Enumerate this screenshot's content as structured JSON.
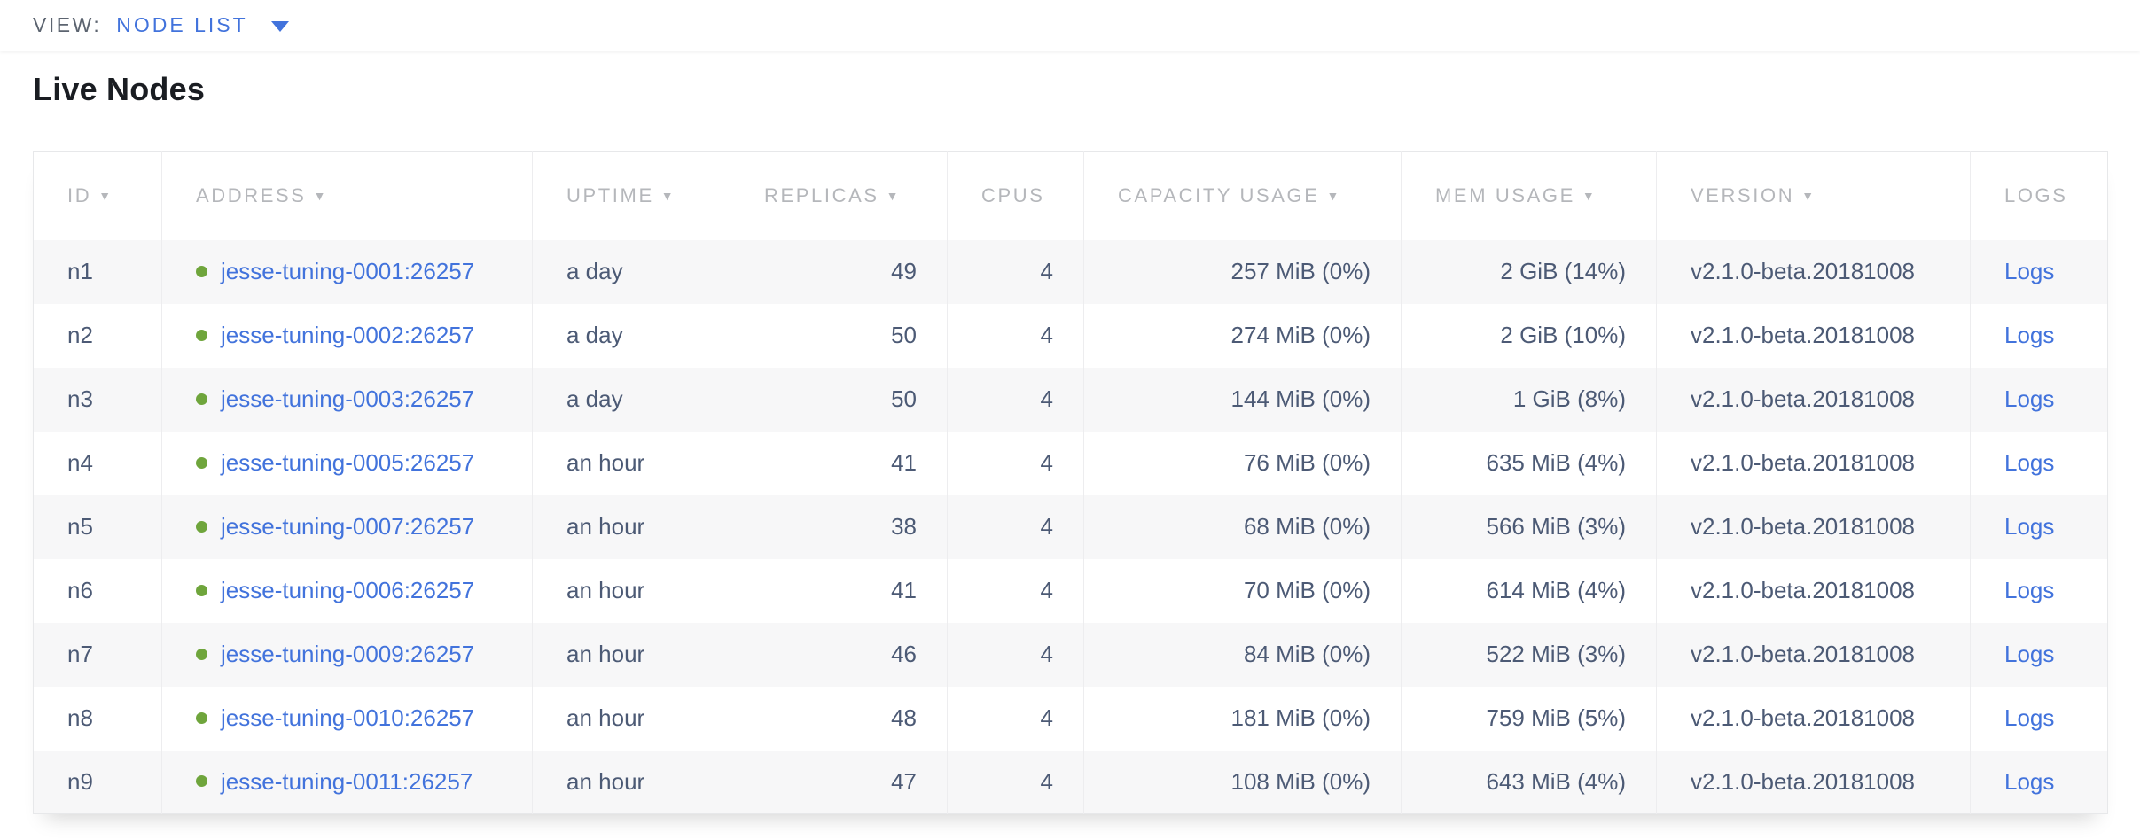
{
  "topbar": {
    "view_label": "VIEW:",
    "view_value": "NODE LIST"
  },
  "page_title": "Live Nodes",
  "icons": {
    "sort_arrow": "▼"
  },
  "table": {
    "columns": [
      {
        "key": "id",
        "label": "ID",
        "sortable": true,
        "align": "left"
      },
      {
        "key": "address",
        "label": "ADDRESS",
        "sortable": true,
        "align": "left",
        "type": "address"
      },
      {
        "key": "uptime",
        "label": "UPTIME",
        "sortable": true,
        "align": "left"
      },
      {
        "key": "replicas",
        "label": "REPLICAS",
        "sortable": true,
        "align": "right"
      },
      {
        "key": "cpus",
        "label": "CPUS",
        "sortable": false,
        "align": "right"
      },
      {
        "key": "capacity",
        "label": "CAPACITY USAGE",
        "sortable": true,
        "align": "right"
      },
      {
        "key": "mem",
        "label": "MEM USAGE",
        "sortable": true,
        "align": "right"
      },
      {
        "key": "version",
        "label": "VERSION",
        "sortable": true,
        "align": "left"
      },
      {
        "key": "logs",
        "label": "LOGS",
        "sortable": false,
        "align": "left",
        "type": "link"
      }
    ],
    "rows": [
      {
        "id": "n1",
        "address": "jesse-tuning-0001:26257",
        "status": "live",
        "uptime": "a day",
        "replicas": "49",
        "cpus": "4",
        "capacity": "257 MiB (0%)",
        "mem": "2 GiB (14%)",
        "version": "v2.1.0-beta.20181008",
        "logs": "Logs"
      },
      {
        "id": "n2",
        "address": "jesse-tuning-0002:26257",
        "status": "live",
        "uptime": "a day",
        "replicas": "50",
        "cpus": "4",
        "capacity": "274 MiB (0%)",
        "mem": "2 GiB (10%)",
        "version": "v2.1.0-beta.20181008",
        "logs": "Logs"
      },
      {
        "id": "n3",
        "address": "jesse-tuning-0003:26257",
        "status": "live",
        "uptime": "a day",
        "replicas": "50",
        "cpus": "4",
        "capacity": "144 MiB (0%)",
        "mem": "1 GiB (8%)",
        "version": "v2.1.0-beta.20181008",
        "logs": "Logs"
      },
      {
        "id": "n4",
        "address": "jesse-tuning-0005:26257",
        "status": "live",
        "uptime": "an hour",
        "replicas": "41",
        "cpus": "4",
        "capacity": "76 MiB (0%)",
        "mem": "635 MiB (4%)",
        "version": "v2.1.0-beta.20181008",
        "logs": "Logs"
      },
      {
        "id": "n5",
        "address": "jesse-tuning-0007:26257",
        "status": "live",
        "uptime": "an hour",
        "replicas": "38",
        "cpus": "4",
        "capacity": "68 MiB (0%)",
        "mem": "566 MiB (3%)",
        "version": "v2.1.0-beta.20181008",
        "logs": "Logs"
      },
      {
        "id": "n6",
        "address": "jesse-tuning-0006:26257",
        "status": "live",
        "uptime": "an hour",
        "replicas": "41",
        "cpus": "4",
        "capacity": "70 MiB (0%)",
        "mem": "614 MiB (4%)",
        "version": "v2.1.0-beta.20181008",
        "logs": "Logs"
      },
      {
        "id": "n7",
        "address": "jesse-tuning-0009:26257",
        "status": "live",
        "uptime": "an hour",
        "replicas": "46",
        "cpus": "4",
        "capacity": "84 MiB (0%)",
        "mem": "522 MiB (3%)",
        "version": "v2.1.0-beta.20181008",
        "logs": "Logs"
      },
      {
        "id": "n8",
        "address": "jesse-tuning-0010:26257",
        "status": "live",
        "uptime": "an hour",
        "replicas": "48",
        "cpus": "4",
        "capacity": "181 MiB (0%)",
        "mem": "759 MiB (5%)",
        "version": "v2.1.0-beta.20181008",
        "logs": "Logs"
      },
      {
        "id": "n9",
        "address": "jesse-tuning-0011:26257",
        "status": "live",
        "uptime": "an hour",
        "replicas": "47",
        "cpus": "4",
        "capacity": "108 MiB (0%)",
        "mem": "643 MiB (4%)",
        "version": "v2.1.0-beta.20181008",
        "logs": "Logs"
      }
    ]
  },
  "colors": {
    "accent_blue": "#4273dc",
    "live_green": "#6fa53c",
    "header_text": "#b5b7bb",
    "body_text": "#4c5a75",
    "stripe_row": "#f7f7f8",
    "table_border": "#e7e8ea"
  }
}
